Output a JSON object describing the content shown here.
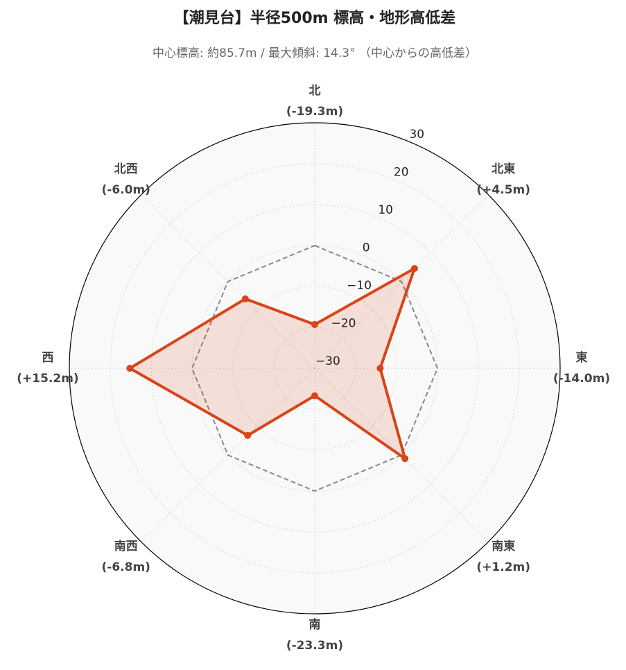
{
  "chart_data": {
    "type": "radar",
    "title": "【潮見台】半径500m 標高・地形高低差",
    "subtitle": "中心標高: 約85.7m / 最大傾斜: 14.3° （中心からの高低差）",
    "categories": [
      "北",
      "北東",
      "東",
      "南東",
      "南",
      "南西",
      "西",
      "北西"
    ],
    "values": [
      -19.3,
      4.5,
      -14.0,
      1.2,
      -23.3,
      -6.8,
      15.2,
      -6.0
    ],
    "value_labels": [
      "(-19.3m)",
      "(+4.5m)",
      "(-14.0m)",
      "(+1.2m)",
      "(-23.3m)",
      "(-6.8m)",
      "(+15.2m)",
      "(-6.0m)"
    ],
    "color": "#d84418",
    "reference_value": 0,
    "reference_color": "#888888",
    "ylim": [
      -30,
      30
    ],
    "yticks": [
      {
        "value": -30,
        "label": "−30"
      },
      {
        "value": -20,
        "label": "−20"
      },
      {
        "value": -10,
        "label": "−10"
      },
      0,
      10,
      20,
      30
    ],
    "grid": true
  }
}
